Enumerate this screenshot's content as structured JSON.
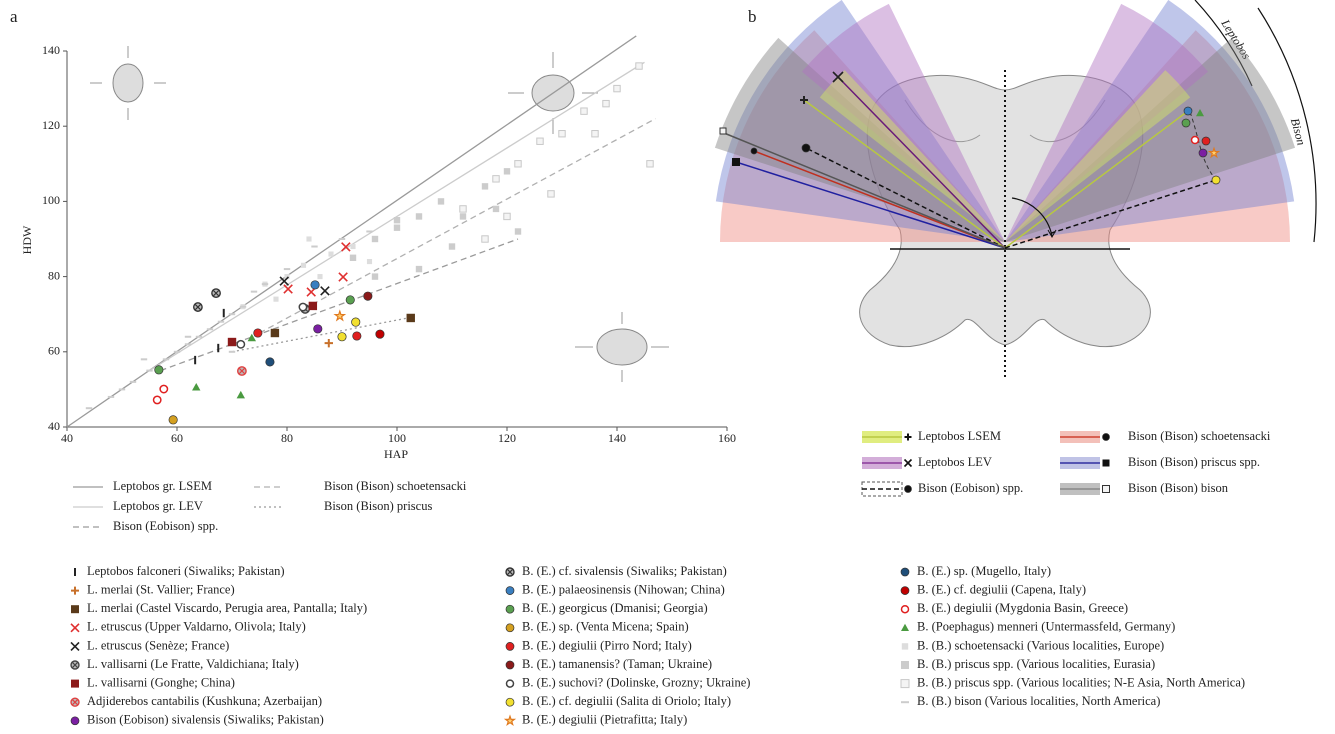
{
  "chart_data": {
    "type": "scatter",
    "panel_label": "a",
    "x_label": "HAP",
    "y_label": "HDW",
    "xlim": [
      40,
      160
    ],
    "xticks": [
      40,
      60,
      80,
      100,
      120,
      140,
      160
    ],
    "ylim": [
      40,
      140
    ],
    "yticks": [
      40,
      60,
      80,
      100,
      120,
      140
    ],
    "trend_lines": [
      {
        "name": "Leptobos gr. LSEM",
        "style": "solid",
        "color": "#9a9a9a",
        "x": [
          40,
          143.5
        ],
        "values": [
          40,
          144
        ]
      },
      {
        "name": "Leptobos gr. LEV",
        "style": "solid",
        "color": "#cccccc",
        "x": [
          55,
          145
        ],
        "values": [
          55,
          137
        ]
      },
      {
        "name": "Bison (Eobison) spp.",
        "style": "dashed",
        "color": "#9a9a9a",
        "x": [
          57,
          122
        ],
        "values": [
          55,
          90
        ]
      },
      {
        "name": "Bison (Bison) schoetensacki",
        "style": "dashed",
        "color": "#b0b0b0",
        "x": [
          75,
          147
        ],
        "values": [
          65,
          122
        ]
      },
      {
        "name": "Bison (Bison) priscus",
        "style": "dotted",
        "color": "#9a9a9a",
        "x": [
          70,
          102
        ],
        "values": [
          60,
          69
        ]
      }
    ],
    "series": [
      {
        "name": "Leptobos falconeri (Siwaliks; Pakistan)",
        "marker": "bar",
        "color": "#222222",
        "x": [
          63.3,
          68.5,
          67.5
        ],
        "values": [
          57.8,
          70.3,
          61
        ]
      },
      {
        "name": "L. merlai (St. Vallier; France)",
        "marker": "plus",
        "color": "#c8702a",
        "x": [
          87.6
        ],
        "values": [
          62.3
        ]
      },
      {
        "name": "L. merlai (Castel Viscardo, Perugia area, Pantalla; Italy)",
        "marker": "square",
        "color": "#5a3a1a",
        "x": [
          77.8,
          102.5
        ],
        "values": [
          65,
          69
        ]
      },
      {
        "name": "L. etruscus (Upper Valdarno, Olivola; Italy)",
        "marker": "x",
        "color": "#e03030",
        "x": [
          90.7,
          90.2,
          80.2,
          84.4
        ],
        "values": [
          87.9,
          79.9,
          76.7,
          75.9
        ]
      },
      {
        "name": "L. etruscus (Senèze; France)",
        "marker": "x",
        "color": "#222222",
        "x": [
          79.5,
          86.9
        ],
        "values": [
          78.8,
          76.2
        ]
      },
      {
        "name": "L. vallisarni (Le Fratte, Valdichiana; Italy)",
        "marker": "circle-x",
        "color": "#444444",
        "x": [
          83.3
        ],
        "values": [
          71.4
        ]
      },
      {
        "name": "L. vallisarni (Gonghe; China)",
        "marker": "square",
        "color": "#8b1a1a",
        "x": [
          70,
          84.7
        ],
        "values": [
          62.6,
          72.2
        ]
      },
      {
        "name": "Adjiderebos cantabilis (Kushkuna; Azerbaijan)",
        "marker": "circle-x",
        "color": "#e04040",
        "x": [
          71.8
        ],
        "values": [
          54.9
        ]
      },
      {
        "name": "Bison (Eobison) sivalensis (Siwaliks; Pakistan)",
        "marker": "circle",
        "color": "#7b1fa2",
        "x": [
          85.6
        ],
        "values": [
          66.1
        ]
      },
      {
        "name": "B. (E.) cf. sivalensis (Siwaliks; Pakistan)",
        "marker": "circle-x",
        "color": "#333333",
        "x": [
          63.8,
          67.1
        ],
        "values": [
          71.9,
          75.6
        ]
      },
      {
        "name": "B. (E.) palaeosinensis (Nihowan; China)",
        "marker": "circle",
        "color": "#3a7fc0",
        "x": [
          85.1
        ],
        "values": [
          77.8
        ]
      },
      {
        "name": "B. (E.) georgicus (Dmanisi; Georgia)",
        "marker": "circle",
        "color": "#5aa050",
        "x": [
          56.7,
          91.5
        ],
        "values": [
          55.2,
          73.8
        ]
      },
      {
        "name": "B. (E.) sp. (Venta Micena; Spain)",
        "marker": "circle",
        "color": "#d4a020",
        "x": [
          59.3
        ],
        "values": [
          41.9
        ]
      },
      {
        "name": "B. (E.) degiulii (Pirro Nord; Italy)",
        "marker": "circle",
        "color": "#e02020",
        "x": [
          74.7,
          92.7
        ],
        "values": [
          65,
          64.2
        ]
      },
      {
        "name": "B. (E.) tamanensis? (Taman; Ukraine)",
        "marker": "circle",
        "color": "#8b1a1a",
        "x": [
          94.7
        ],
        "values": [
          74.8
        ]
      },
      {
        "name": "B. (E.) suchovi? (Dolinske, Grozny; Ukraine)",
        "marker": "circle-open",
        "color": "#444444",
        "x": [
          82.9,
          71.6
        ],
        "values": [
          71.9,
          62
        ]
      },
      {
        "name": "B. (E.) cf. degiulii (Salita di Oriolo; Italy)",
        "marker": "circle",
        "color": "#f2e030",
        "x": [
          90,
          92.5
        ],
        "values": [
          64,
          67.9
        ]
      },
      {
        "name": "B. (E.) degiulii (Pietrafitta; Italy)",
        "marker": "star",
        "color": "#e07a20",
        "x": [
          89.6
        ],
        "values": [
          69.5
        ]
      },
      {
        "name": "B. (E.) sp. (Mugello, Italy)",
        "marker": "circle",
        "color": "#1f4e79",
        "x": [
          76.9
        ],
        "values": [
          57.3
        ]
      },
      {
        "name": "B. (E.) cf. degiulii (Capena, Italy)",
        "marker": "circle",
        "color": "#c00000",
        "x": [
          96.9
        ],
        "values": [
          64.7
        ]
      },
      {
        "name": "B. (E.) degiulii (Mygdonia Basin, Greece)",
        "marker": "circle-open",
        "color": "#e02020",
        "x": [
          56.4,
          57.6
        ],
        "values": [
          47.2,
          50.1
        ]
      },
      {
        "name": "B. (Poephagus) menneri (Untermassfeld, Germany)",
        "marker": "triangle",
        "color": "#4a9a40",
        "x": [
          63.5,
          71.6,
          73.6
        ],
        "values": [
          50.6,
          48.5,
          63.7
        ]
      },
      {
        "name": "B. (B.) schoetensacki (Various localities, Europe)",
        "marker": "square-small",
        "color": "#dddddd",
        "x": [
          72,
          76,
          80,
          83,
          86,
          88,
          92,
          95,
          78,
          84
        ],
        "values": [
          72,
          78,
          80,
          83,
          80,
          86,
          88,
          84,
          74,
          90
        ]
      },
      {
        "name": "B. (B.) priscus spp. (Various localities, Eurasia)",
        "marker": "square",
        "color": "#cccccc",
        "x": [
          92,
          96,
          100,
          104,
          108,
          112,
          116,
          118,
          120,
          122,
          110,
          100,
          96,
          104
        ],
        "values": [
          85,
          90,
          93,
          96,
          100,
          96,
          104,
          98,
          108,
          92,
          88,
          95,
          80,
          82
        ]
      },
      {
        "name": "B. (B.) priscus spp. (Various localities; N-E Asia, North America)",
        "marker": "square-open",
        "color": "#c8c8c8",
        "x": [
          112,
          118,
          122,
          126,
          130,
          134,
          138,
          140,
          144,
          146,
          120,
          128,
          116,
          136
        ],
        "values": [
          98,
          106,
          110,
          116,
          118,
          124,
          126,
          130,
          136,
          110,
          96,
          102,
          90,
          118
        ]
      },
      {
        "name": "B. (B.) bison (Various localities, North America)",
        "marker": "dash",
        "color": "#cccccc",
        "x": [
          44,
          48,
          50,
          52,
          55,
          58,
          60,
          62,
          64,
          66,
          68,
          70,
          72,
          74,
          76,
          80,
          85,
          90,
          95,
          54,
          62,
          70
        ],
        "values": [
          45,
          48,
          50,
          52,
          55,
          58,
          60,
          62,
          64,
          66,
          68,
          70,
          72,
          76,
          78,
          82,
          88,
          90,
          92,
          58,
          64,
          60
        ]
      }
    ]
  },
  "panel_b": {
    "label": "b",
    "arc_labels": [
      "Leptobos",
      "Bison"
    ],
    "legend": [
      "Leptobos LSEM",
      "Leptobos LEV",
      "Bison (Eobison) spp.",
      "Bison (Bison) schoetensacki",
      "Bison (Bison) priscus spp.",
      "Bison (Bison) bison"
    ]
  }
}
